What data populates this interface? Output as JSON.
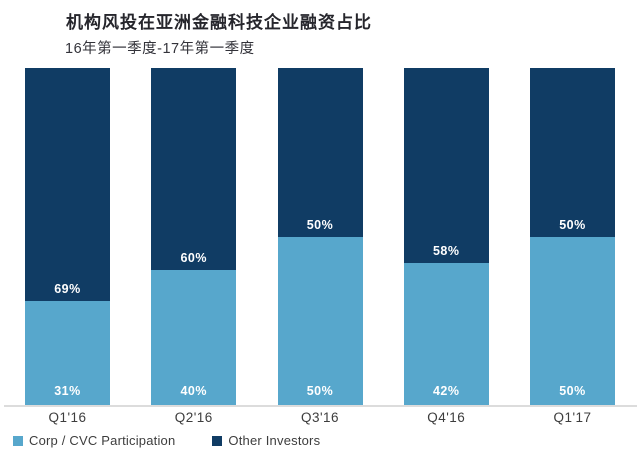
{
  "chart_data": {
    "type": "bar",
    "stacked": true,
    "percent_stacked": true,
    "title": "机构风投在亚洲金融科技企业融资占比",
    "subtitle": "16年第一季度-17年第一季度",
    "categories": [
      "Q1'16",
      "Q2'16",
      "Q3'16",
      "Q4'16",
      "Q1'17"
    ],
    "series": [
      {
        "name": "Corp / CVC Participation",
        "color": "#57A7CC",
        "values": [
          31,
          40,
          50,
          42,
          50
        ]
      },
      {
        "name": "Other Investors",
        "color": "#103C64",
        "values": [
          69,
          60,
          50,
          58,
          50
        ]
      }
    ],
    "value_label_format": "{v}%",
    "xlabel": "",
    "ylabel": "",
    "ylim": [
      0,
      100
    ],
    "grid": false,
    "legend_position": "bottom-left"
  },
  "colors": {
    "background": "#FFFFFF",
    "axis_line": "#DCDCDC",
    "bar_label_text": "#FFFFFF",
    "axis_label_text": "#3D3D3D",
    "legend_text": "#3D3D3D",
    "title_text": "#26262C",
    "subtitle_text": "#33333A"
  }
}
